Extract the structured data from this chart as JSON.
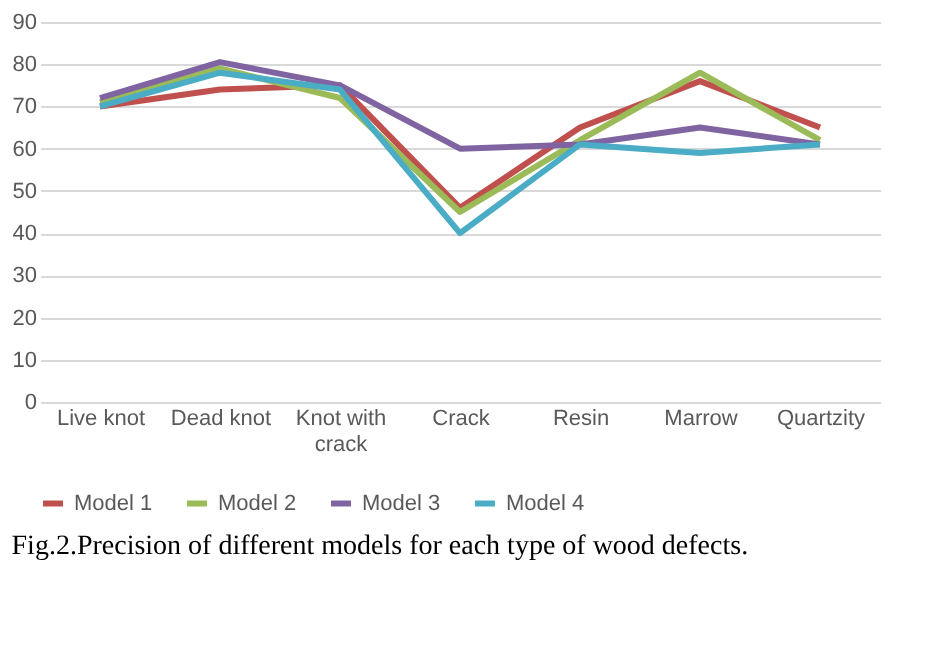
{
  "chart_data": {
    "type": "line",
    "categories": [
      "Live knot",
      "Dead knot",
      "Knot with crack",
      "Crack",
      "Resin",
      "Marrow",
      "Quartzity"
    ],
    "series": [
      {
        "name": "Model 1",
        "color": "#c0504d",
        "values": [
          70,
          74,
          75,
          46,
          65,
          76,
          65
        ]
      },
      {
        "name": "Model 2",
        "color": "#9bbb59",
        "values": [
          71,
          79,
          72,
          45,
          62,
          78,
          62
        ]
      },
      {
        "name": "Model 3",
        "color": "#8064a2",
        "values": [
          72,
          80.5,
          75,
          60,
          61,
          65,
          61
        ]
      },
      {
        "name": "Model 4",
        "color": "#4bacc6",
        "values": [
          70,
          78,
          74,
          40,
          61,
          59,
          61
        ]
      }
    ],
    "ylim": [
      0,
      90
    ],
    "yticks": [
      0,
      10,
      20,
      30,
      40,
      50,
      60,
      70,
      80,
      90
    ],
    "grid": "y",
    "legend": "bottom",
    "marker": "none",
    "line_style": "solid",
    "annotations": [
      "Fig.2.Precision of different models for each type of wood defects."
    ]
  }
}
